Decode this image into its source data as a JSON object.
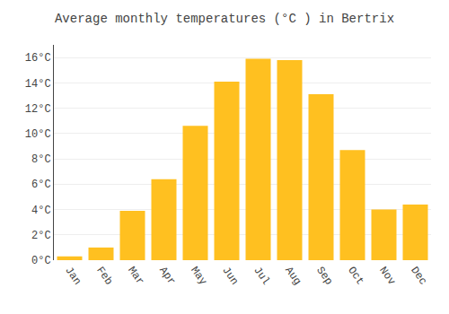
{
  "chart_data": {
    "type": "bar",
    "title": "Average monthly temperatures (°C ) in Bertrix",
    "categories": [
      "Jan",
      "Feb",
      "Mar",
      "Apr",
      "May",
      "Jun",
      "Jul",
      "Aug",
      "Sep",
      "Oct",
      "Nov",
      "Dec"
    ],
    "values": [
      0.3,
      1.0,
      3.9,
      6.4,
      10.6,
      14.1,
      15.9,
      15.8,
      13.1,
      8.7,
      4.0,
      4.4
    ],
    "color": "#FFC020",
    "ylim": [
      0,
      17
    ],
    "yticks": [
      {
        "value": 0,
        "label": "0°C"
      },
      {
        "value": 2,
        "label": "2°C"
      },
      {
        "value": 4,
        "label": "4°C"
      },
      {
        "value": 6,
        "label": "6°C"
      },
      {
        "value": 8,
        "label": "8°C"
      },
      {
        "value": 10,
        "label": "10°C"
      },
      {
        "value": 12,
        "label": "12°C"
      },
      {
        "value": 14,
        "label": "14°C"
      },
      {
        "value": 16,
        "label": "16°C"
      }
    ],
    "grid": true
  }
}
